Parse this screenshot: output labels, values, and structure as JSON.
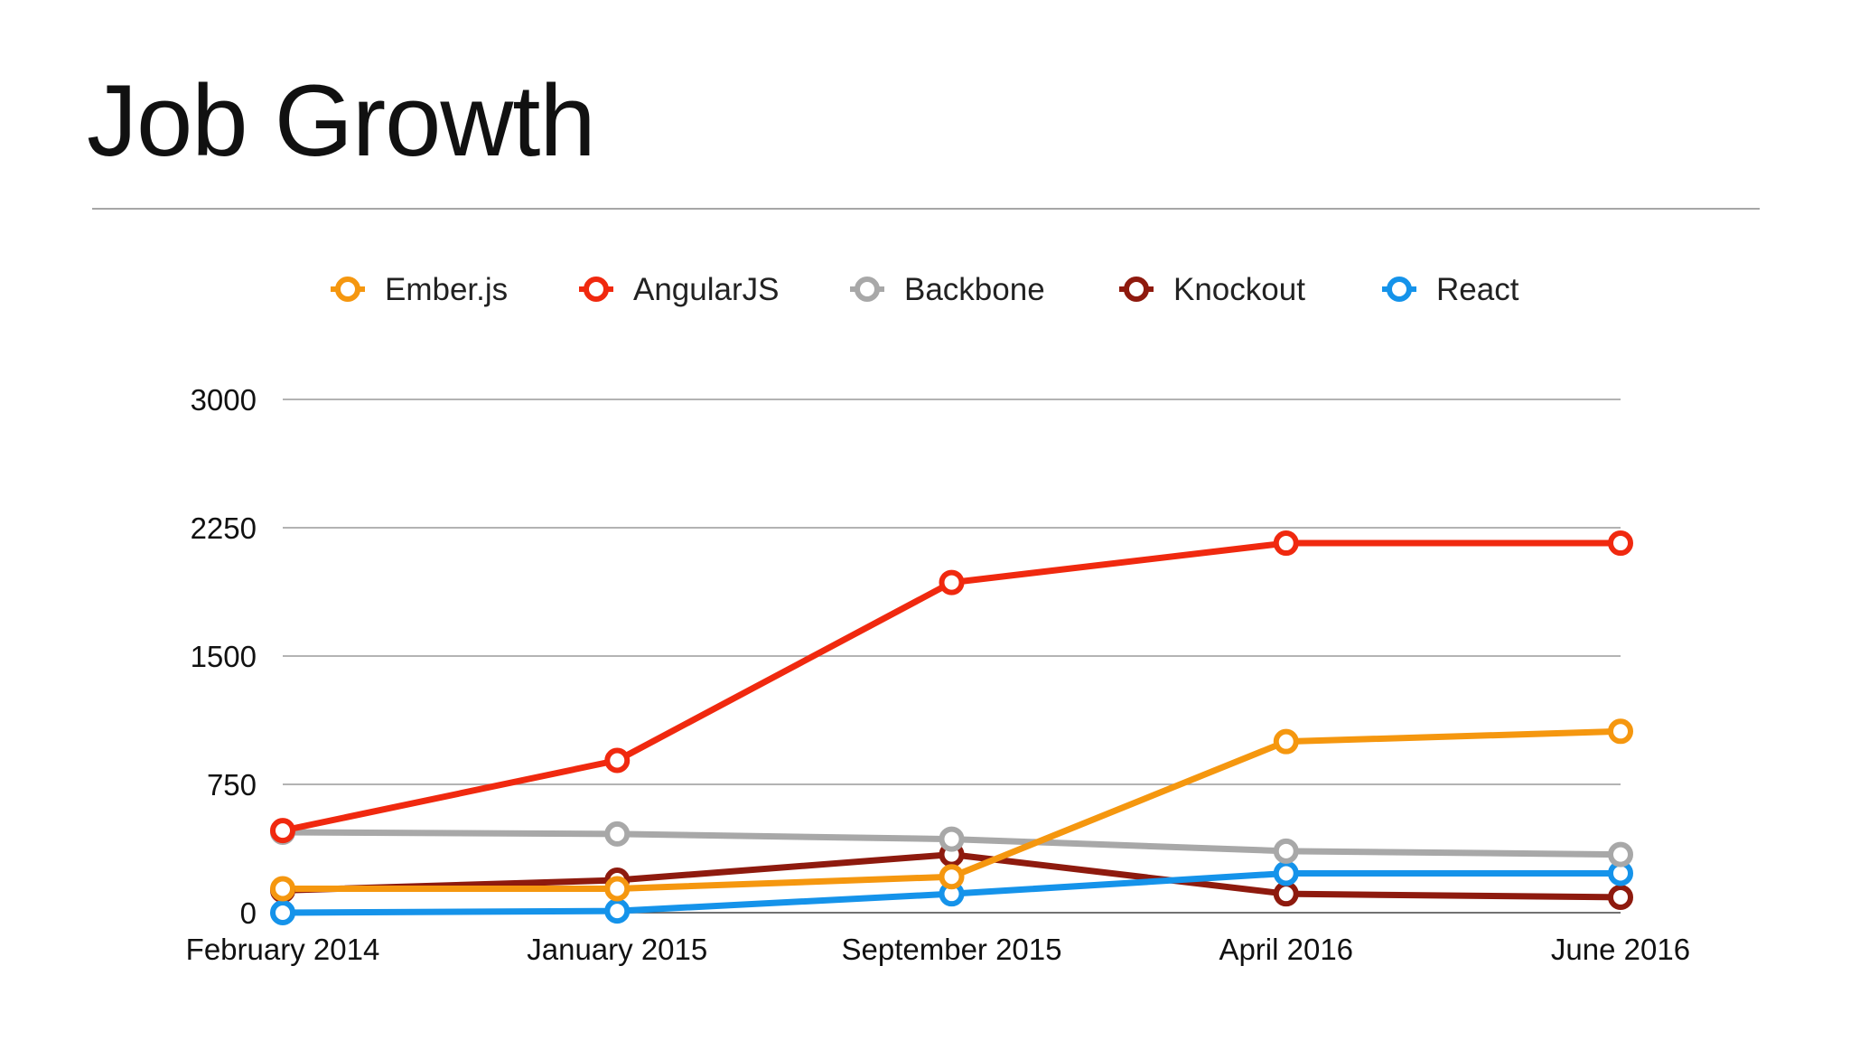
{
  "slide": {
    "title": "Job Growth"
  },
  "chart_data": {
    "type": "line",
    "title": "",
    "xlabel": "",
    "ylabel": "",
    "categories": [
      "February 2014",
      "January 2015",
      "September 2015",
      "April 2016",
      "June 2016"
    ],
    "yticks": [
      0,
      750,
      1500,
      2250,
      3000
    ],
    "ylim": [
      0,
      3000
    ],
    "grid": true,
    "legend_position": "top",
    "series": [
      {
        "name": "Ember.js",
        "color": "#f5970f",
        "values": [
          140,
          140,
          210,
          1000,
          1060
        ]
      },
      {
        "name": "AngularJS",
        "color": "#f0290f",
        "values": [
          480,
          890,
          1930,
          2160,
          2160
        ]
      },
      {
        "name": "Backbone",
        "color": "#a8a8a8",
        "values": [
          470,
          460,
          430,
          360,
          340
        ]
      },
      {
        "name": "Knockout",
        "color": "#8e1a0e",
        "values": [
          130,
          190,
          340,
          110,
          90
        ]
      },
      {
        "name": "React",
        "color": "#1593ea",
        "values": [
          0,
          10,
          110,
          230,
          230
        ]
      }
    ],
    "draw_order": [
      "Knockout",
      "React",
      "Backbone",
      "Ember.js",
      "AngularJS"
    ]
  }
}
